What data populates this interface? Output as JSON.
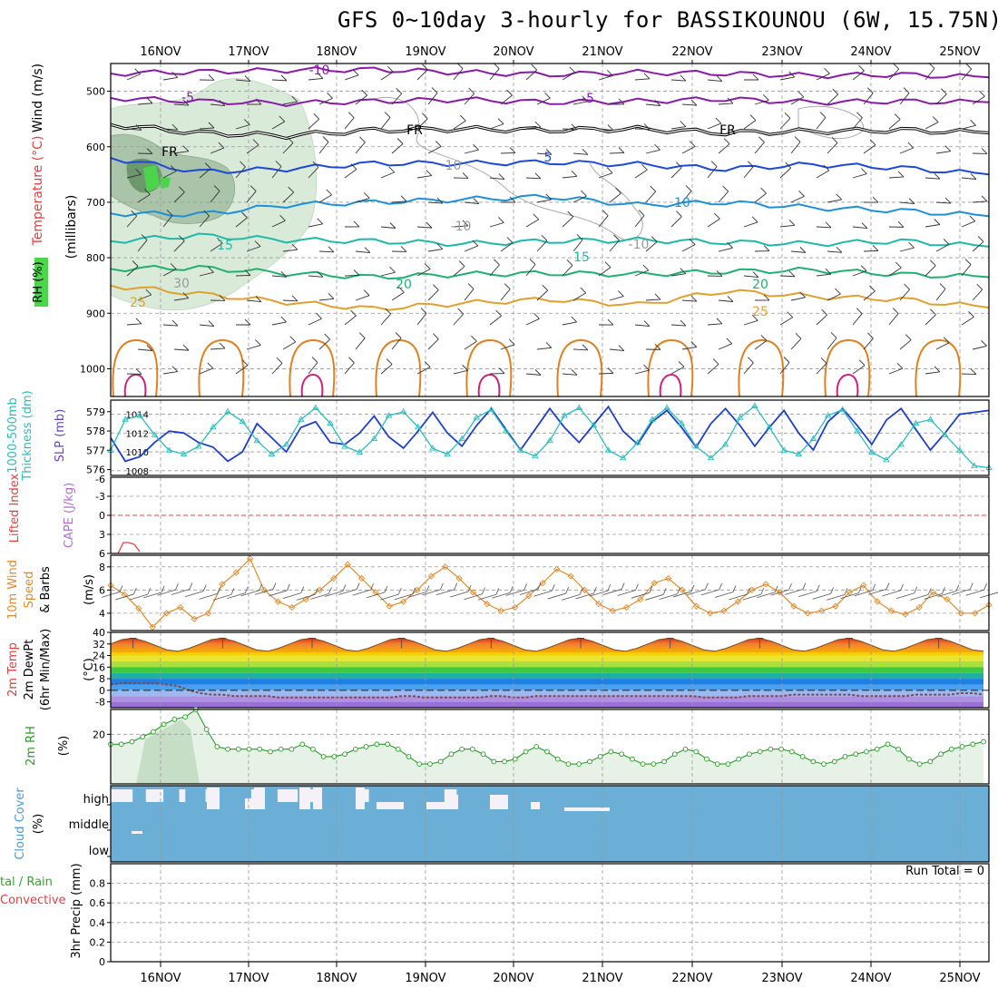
{
  "title": "GFS 0~10day 3-hourly for BASSIKOUNOU (6W, 15.75N)",
  "dates": [
    "16NOV",
    "17NOV",
    "18NOV",
    "19NOV",
    "20NOV",
    "21NOV",
    "22NOV",
    "23NOV",
    "24NOV",
    "25NOV"
  ],
  "colors": {
    "frame": "#000000",
    "grid": "#9a9a9a",
    "rh_fill": "#d9ead9",
    "rh_fill_dark": "#a9c4a9",
    "slp_line": "#1f3fc8",
    "thickness_line": "#2cbcbc",
    "wind_speed": "#e08a2a",
    "cloud_fill": "#6baed6",
    "rh2m_line": "#2a9a2a",
    "lifted_ref": "#e04040"
  },
  "panel_labels": {
    "upper": [
      "Wind (m/s)",
      "Temperature (°C)",
      "RH (%)",
      "(millibars)"
    ],
    "slp": [
      "SLP (mb)",
      "1000-500mb",
      "Thickness (dm)"
    ],
    "cape": [
      "Lifted Index",
      "CAPE (J/kg)"
    ],
    "wind10": [
      "10m Wind",
      "Speed",
      "& Barbs",
      "(m/s)"
    ],
    "temp2m": [
      "2m Temp",
      "2m DewPt",
      "(6hr Min/Max)",
      "(°C)"
    ],
    "rh2m": [
      "2m RH",
      "(%)"
    ],
    "cloud": [
      "Cloud Cover",
      "(%)"
    ],
    "precip": [
      "tal / Rain",
      "Convective",
      "3hr Precip (mm)"
    ]
  },
  "contour_labels": [
    "-10",
    "-5",
    "-5",
    "FR",
    "FR",
    "FR",
    "5",
    "10",
    "15",
    "15",
    "20",
    "20",
    "25",
    "25",
    "-10",
    "-10",
    "-10",
    "30"
  ],
  "run_total": "Run Total = 0",
  "chart_data": [
    {
      "type": "line",
      "name": "upper-air",
      "yaxis_ticks": [
        500,
        600,
        700,
        800,
        900,
        1000
      ],
      "ylim": [
        1050,
        450
      ],
      "isotherm_levels": [
        {
          "label": "-10",
          "pressure": [
            468,
            465,
            462,
            461,
            466,
            470,
            466,
            468,
            472,
            470,
            475
          ]
        },
        {
          "label": "-5",
          "pressure": [
            512,
            518,
            522,
            518,
            515,
            520,
            518,
            514,
            520,
            518,
            520
          ]
        },
        {
          "label": "FR",
          "pressure": [
            560,
            575,
            580,
            570,
            568,
            570,
            568,
            575,
            572,
            570,
            575
          ]
        },
        {
          "label": "5",
          "pressure": [
            620,
            645,
            640,
            630,
            630,
            628,
            632,
            640,
            632,
            638,
            650
          ]
        },
        {
          "label": "10",
          "pressure": [
            720,
            722,
            705,
            700,
            695,
            690,
            705,
            700,
            710,
            715,
            725
          ]
        },
        {
          "label": "15",
          "pressure": [
            770,
            760,
            768,
            770,
            775,
            770,
            768,
            772,
            775,
            770,
            780
          ]
        },
        {
          "label": "20",
          "pressure": [
            820,
            818,
            828,
            835,
            830,
            828,
            830,
            825,
            822,
            830,
            835
          ]
        },
        {
          "label": "25",
          "pressure": [
            850,
            865,
            880,
            892,
            882,
            875,
            885,
            860,
            870,
            875,
            890
          ]
        }
      ]
    },
    {
      "type": "line",
      "name": "slp-thickness",
      "title": "",
      "slp_ticks": [
        1008,
        1010,
        1012,
        1014
      ],
      "thickness_ticks": [
        576,
        577,
        578,
        579
      ],
      "slp": [
        1011.5,
        1009,
        1009.5,
        1011,
        1012.2,
        1012,
        1011,
        1010.5,
        1009,
        1010,
        1013,
        1011.5,
        1010,
        1012.6,
        1013.2,
        1011,
        1010.8,
        1012,
        1013.8,
        1011.6,
        1010.4,
        1012.2,
        1014.2,
        1012,
        1010.6,
        1012.8,
        1014.6,
        1012.4,
        1010.2,
        1012.4,
        1014.6,
        1012.6,
        1011,
        1012.9,
        1014.8,
        1012.2,
        1010.8,
        1013.2,
        1014.4,
        1012.6,
        1010.5,
        1013,
        1014.6,
        1012.8,
        1010.6,
        1012.6,
        1014.4,
        1012,
        1010.2,
        1013.2,
        1014.6,
        1012.8,
        1010.8,
        1013.4,
        1014.6,
        1012.4,
        1010.2,
        1012,
        1014,
        1014.2,
        1014.4
      ],
      "thickness": [
        577.0,
        578.6,
        578.8,
        577.8,
        577.0,
        576.8,
        577.2,
        578.2,
        579.0,
        578.5,
        577.5,
        576.8,
        577.3,
        578.6,
        579.2,
        578.4,
        577.2,
        576.9,
        577.6,
        578.8,
        579.0,
        578.2,
        577.1,
        576.8,
        577.6,
        578.7,
        579.1,
        578.0,
        577.0,
        576.7,
        577.5,
        578.8,
        579.2,
        578.3,
        577.0,
        576.6,
        577.4,
        578.6,
        579.2,
        578.4,
        577.2,
        576.6,
        577.3,
        578.7,
        579.3,
        578.2,
        577.0,
        576.8,
        577.6,
        578.8,
        579.1,
        578.0,
        576.9,
        576.5,
        577.3,
        578.4,
        578.6,
        577.8,
        577.0,
        576.2,
        576.1
      ]
    },
    {
      "type": "line",
      "name": "lifted-index-cape",
      "yticks": [
        "-3",
        "0",
        "3",
        "6"
      ],
      "ylim": [
        6,
        -6
      ]
    },
    {
      "type": "line",
      "name": "wind10m",
      "yticks": [
        4,
        6,
        8
      ],
      "ylim": [
        2.5,
        9
      ],
      "values": [
        6.4,
        5.6,
        4.4,
        2.8,
        4.0,
        4.5,
        3.5,
        4.0,
        6.5,
        7.5,
        8.7,
        6.0,
        5.0,
        4.5,
        5.2,
        6.0,
        7.0,
        8.2,
        7.0,
        5.8,
        4.6,
        5.0,
        6.0,
        7.2,
        8.0,
        7.0,
        5.8,
        4.8,
        4.2,
        4.5,
        5.5,
        6.6,
        7.8,
        7.2,
        6.0,
        4.8,
        4.2,
        4.5,
        5.2,
        6.6,
        7.0,
        6.0,
        4.6,
        4.0,
        4.2,
        5.0,
        6.0,
        6.5,
        5.8,
        4.6,
        4.0,
        4.2,
        4.6,
        5.8,
        6.4,
        5.0,
        4.2,
        3.9,
        4.5,
        5.8,
        5.2,
        4.0,
        4.0,
        4.7
      ]
    },
    {
      "type": "area",
      "name": "temp2m",
      "yticks": [
        -8,
        0,
        8,
        16,
        24,
        32,
        40
      ],
      "ylim": [
        -12,
        40
      ],
      "temp": [
        32,
        35,
        36,
        34,
        31,
        28,
        27,
        29,
        32,
        35,
        36,
        34,
        31,
        28,
        27,
        29,
        32,
        35,
        36,
        34,
        31,
        28,
        27,
        29,
        32,
        35,
        36,
        34,
        31,
        28,
        27,
        29,
        32,
        35,
        36,
        34,
        31,
        28,
        27,
        29,
        32,
        35,
        36,
        34,
        31,
        28,
        27,
        29,
        32,
        35,
        36,
        34,
        31,
        28,
        27,
        29,
        32,
        35,
        36,
        34,
        31,
        28,
        27,
        29,
        32,
        35,
        36,
        34,
        31,
        28,
        27,
        29,
        32,
        35,
        36,
        34,
        31,
        28,
        27
      ],
      "dewpoint": [
        4,
        5,
        5,
        5,
        5,
        4,
        3,
        0,
        -2,
        -3,
        -3,
        -4,
        -4,
        -4,
        -4,
        -5,
        -5,
        -5,
        -5,
        -5,
        -5,
        -5,
        -5,
        -5,
        -5,
        -5,
        -4,
        -4,
        -5,
        -5,
        -5,
        -5,
        -5,
        -5,
        -4,
        -4,
        -5,
        -5,
        -4,
        -4,
        -4,
        -4,
        -4,
        -4,
        -4,
        -4,
        -4,
        -4,
        -4,
        -4,
        -4,
        -4,
        -4,
        -5,
        -5,
        -5,
        -5,
        -4,
        -4,
        -4,
        -4,
        -3,
        -3,
        -3,
        -3,
        -3,
        -3,
        -4,
        -4,
        -4,
        -4,
        -4,
        -3,
        -3,
        -3,
        -3,
        -2,
        -2,
        -3
      ]
    },
    {
      "type": "area",
      "name": "rh2m",
      "yticks": [
        20
      ],
      "ylim": [
        0,
        30
      ],
      "values": [
        16,
        16,
        17,
        19,
        21,
        24,
        26,
        27,
        30,
        22,
        15,
        14,
        14,
        14,
        14,
        13,
        14,
        14,
        16,
        14,
        11,
        11,
        12,
        14,
        15,
        16,
        16,
        14,
        11,
        8,
        8,
        9,
        12,
        14,
        14,
        12,
        9,
        9,
        10,
        13,
        15,
        13,
        10,
        8,
        8,
        9,
        11,
        13,
        12,
        10,
        8,
        8,
        9,
        12,
        14,
        13,
        10,
        8,
        8,
        10,
        12,
        13,
        14,
        14,
        13,
        11,
        9,
        8,
        9,
        11,
        12,
        13,
        14,
        16,
        14,
        10,
        8,
        9,
        12,
        14,
        15,
        16,
        17
      ]
    },
    {
      "type": "bar",
      "name": "cloud-cover",
      "categories": [
        "high",
        "middle",
        "low"
      ],
      "high_gaps": [
        [
          0.0,
          0.025
        ],
        [
          0.04,
          0.06
        ],
        [
          0.078,
          0.085
        ],
        [
          0.108,
          0.116
        ],
        [
          0.16,
          0.168
        ],
        [
          0.19,
          0.213
        ],
        [
          0.227,
          0.24
        ],
        [
          0.28,
          0.294
        ],
        [
          0.38,
          0.394
        ]
      ]
    },
    {
      "type": "line",
      "name": "precip",
      "yticks": [
        0,
        0.2,
        0.4,
        0.6,
        0.8
      ],
      "ylim": [
        0,
        1
      ],
      "values": []
    }
  ]
}
